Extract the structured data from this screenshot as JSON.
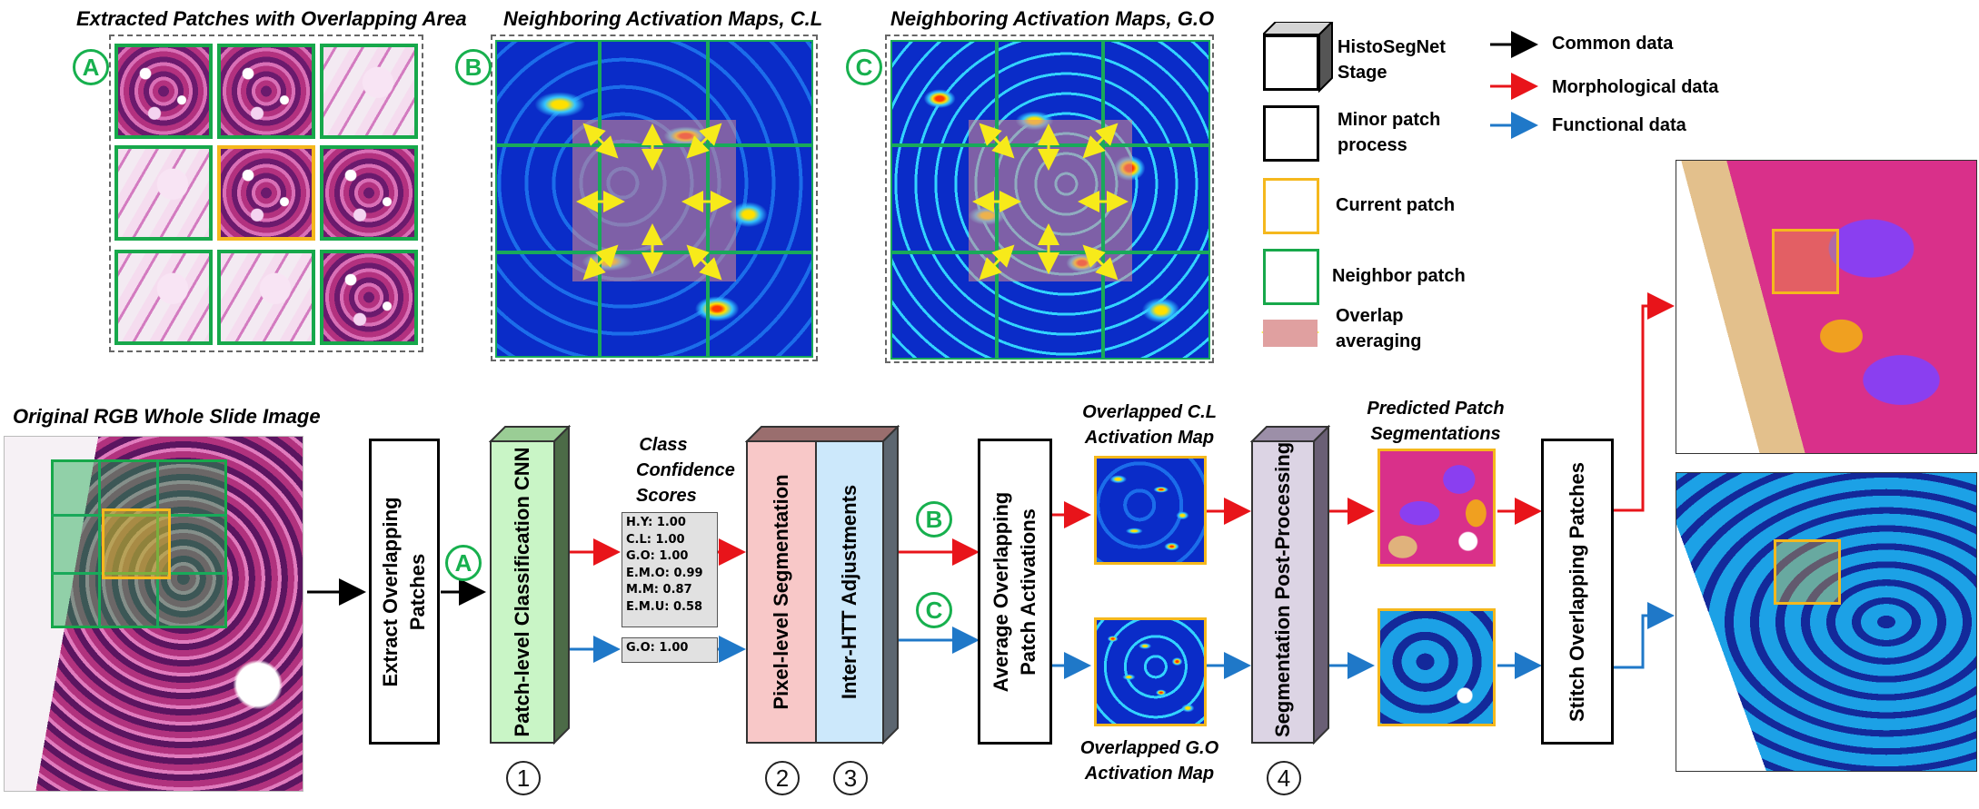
{
  "titles": {
    "extracted_patches": "Extracted Patches with Overlapping Area",
    "neighbor_cl": "Neighboring Activation Maps, C.L",
    "neighbor_go": "Neighboring Activation Maps, G.O",
    "original_wsi": "Original RGB Whole Slide Image",
    "class_confidence": "Class Confidence Scores",
    "overlapped_cl": "Overlapped C.L Activation Map",
    "overlapped_go": "Overlapped G.O Activation Map",
    "predicted_segmentations": "Predicted Patch Segmentations"
  },
  "circle_labels": {
    "a": "A",
    "b": "B",
    "c": "C"
  },
  "step_numbers": {
    "one": "1",
    "two": "2",
    "three": "3",
    "four": "4"
  },
  "legend": {
    "stage": "HistoSegNet Stage",
    "minor": "Minor patch process",
    "current": "Current patch",
    "neighbor": "Neighbor patch",
    "overlap": "Overlap averaging",
    "common": "Common data",
    "morphological": "Morphological data",
    "functional": "Functional data"
  },
  "process": {
    "extract": "Extract Overlapping Patches",
    "classification": "Patch-level Classification CNN",
    "pixel_seg": "Pixel-level Segmentation",
    "inter_htt": "Inter-HTT Adjustments",
    "average": "Average Overlapping Patch Activations",
    "post_processing": "Segmentation Post-Processing",
    "stitch": "Stitch Overlapping Patches"
  },
  "confidence_scores": {
    "morphological": [
      "H.Y: 1.00",
      "C.L: 1.00",
      "G.O: 1.00",
      "E.M.O: 0.99",
      "M.M: 0.87",
      "E.M.U: 0.58"
    ],
    "functional": [
      "G.O: 1.00"
    ]
  },
  "colors": {
    "common": "#000000",
    "morphological": "#e8141a",
    "functional": "#1f78c8",
    "current_patch": "#f5b81d",
    "neighbor_patch": "#17a84b",
    "stage_cnn": "#c9f5c6",
    "stage_seg": "#f8c8c8",
    "stage_htt": "#cce8fb",
    "stage_post": "#dcd4e4"
  }
}
